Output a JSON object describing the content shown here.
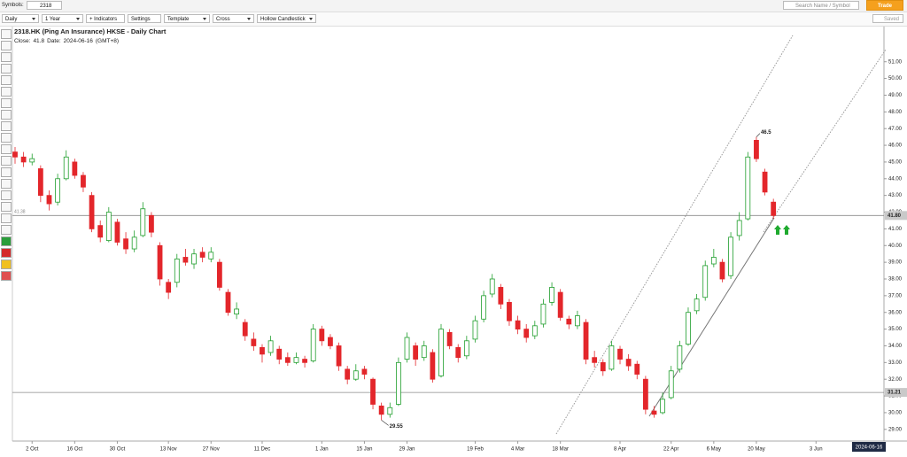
{
  "toolbar": {
    "symbols_label": "Symbols:",
    "symbol": "2318",
    "search_placeholder": "Search Name / Symbol",
    "trade": "Trade",
    "saved": "Saved",
    "menus": [
      "Daily",
      "1 Year",
      "+ Indicators",
      "Settings",
      "Template",
      "Cross",
      "Hollow Candlestick"
    ]
  },
  "chart_data": {
    "type": "candlestick",
    "title": "2318.HK (Ping An Insurance) HKSE - Daily Chart",
    "close_label": "Close:",
    "close": 41.8,
    "date_label": "Date:",
    "date": "2024-06-16",
    "timezone": "(GMT+8)",
    "up_color": "#1f9e2c",
    "down_color": "#e3262b",
    "categories": [
      null,
      null,
      "2 Oct",
      null,
      null,
      null,
      null,
      "16 Oct",
      null,
      null,
      null,
      null,
      "30 Oct",
      null,
      null,
      null,
      null,
      null,
      "13 Nov",
      null,
      null,
      null,
      null,
      "27 Nov",
      null,
      null,
      null,
      null,
      null,
      "11 Dec",
      null,
      null,
      null,
      null,
      null,
      null,
      "1 Jan",
      null,
      null,
      null,
      null,
      "15 Jan",
      null,
      null,
      null,
      null,
      "29 Jan",
      null,
      null,
      null,
      null,
      null,
      null,
      null,
      "19 Feb",
      null,
      null,
      null,
      null,
      "4 Mar",
      null,
      null,
      null,
      null,
      "18 Mar",
      null,
      null,
      null,
      null,
      null,
      null,
      "8 Apr",
      null,
      null,
      null,
      null,
      null,
      "22 Apr",
      null,
      null,
      null,
      null,
      "6 May",
      null,
      null,
      null,
      null,
      "20 May",
      null,
      null,
      null,
      null,
      null,
      null,
      "3 Jun",
      null
    ],
    "ohlc": [
      [
        45.6,
        45.9,
        44.9,
        45.3
      ],
      [
        45.3,
        45.6,
        44.7,
        45.0
      ],
      [
        45.0,
        45.5,
        44.8,
        45.2
      ],
      [
        44.6,
        44.8,
        42.6,
        43.0
      ],
      [
        43.0,
        43.3,
        42.1,
        42.5
      ],
      [
        42.6,
        44.3,
        42.4,
        44.0
      ],
      [
        44.0,
        45.7,
        43.9,
        45.3
      ],
      [
        45.0,
        45.2,
        44.0,
        44.2
      ],
      [
        44.2,
        44.4,
        43.2,
        43.5
      ],
      [
        43.0,
        43.2,
        40.8,
        41.0
      ],
      [
        41.2,
        41.5,
        40.2,
        40.5
      ],
      [
        40.3,
        42.3,
        40.2,
        42.0
      ],
      [
        41.4,
        41.6,
        40.0,
        40.2
      ],
      [
        40.4,
        40.8,
        39.5,
        39.8
      ],
      [
        39.8,
        40.9,
        39.6,
        40.5
      ],
      [
        40.6,
        42.6,
        40.5,
        42.2
      ],
      [
        41.8,
        42.0,
        40.5,
        40.8
      ],
      [
        40.0,
        40.2,
        37.6,
        38.0
      ],
      [
        37.8,
        38.0,
        36.8,
        37.2
      ],
      [
        37.8,
        39.5,
        37.5,
        39.2
      ],
      [
        39.3,
        39.8,
        38.8,
        39.0
      ],
      [
        38.9,
        39.8,
        38.6,
        39.5
      ],
      [
        39.6,
        39.9,
        39.0,
        39.3
      ],
      [
        39.2,
        39.9,
        39.0,
        39.6
      ],
      [
        39.0,
        39.2,
        37.3,
        37.5
      ],
      [
        37.2,
        37.4,
        35.8,
        36.0
      ],
      [
        35.9,
        36.6,
        35.6,
        36.2
      ],
      [
        35.4,
        35.6,
        34.3,
        34.6
      ],
      [
        34.4,
        34.8,
        33.7,
        34.0
      ],
      [
        33.9,
        34.1,
        33.0,
        33.5
      ],
      [
        33.6,
        34.6,
        33.4,
        34.3
      ],
      [
        33.8,
        34.0,
        32.9,
        33.2
      ],
      [
        33.3,
        33.6,
        32.8,
        33.0
      ],
      [
        33.0,
        33.6,
        32.9,
        33.3
      ],
      [
        33.2,
        33.4,
        32.7,
        33.0
      ],
      [
        33.1,
        35.3,
        33.0,
        35.0
      ],
      [
        35.0,
        35.2,
        34.0,
        34.3
      ],
      [
        34.5,
        34.7,
        33.8,
        34.0
      ],
      [
        34.0,
        34.2,
        32.5,
        32.8
      ],
      [
        32.6,
        32.8,
        31.7,
        32.0
      ],
      [
        32.0,
        32.9,
        31.9,
        32.5
      ],
      [
        32.6,
        32.8,
        32.0,
        32.3
      ],
      [
        32.0,
        32.1,
        30.2,
        30.5
      ],
      [
        30.4,
        30.6,
        29.55,
        29.9
      ],
      [
        29.9,
        30.6,
        29.7,
        30.3
      ],
      [
        30.5,
        33.3,
        30.4,
        33.0
      ],
      [
        33.2,
        34.8,
        33.0,
        34.5
      ],
      [
        34.0,
        34.2,
        32.8,
        33.2
      ],
      [
        33.3,
        34.3,
        33.1,
        34.0
      ],
      [
        33.6,
        33.8,
        31.8,
        32.0
      ],
      [
        32.2,
        35.3,
        32.1,
        35.0
      ],
      [
        34.8,
        35.0,
        33.8,
        34.0
      ],
      [
        33.9,
        34.1,
        33.0,
        33.3
      ],
      [
        33.4,
        34.6,
        33.2,
        34.3
      ],
      [
        34.4,
        35.8,
        34.2,
        35.5
      ],
      [
        35.6,
        37.3,
        35.4,
        37.0
      ],
      [
        37.1,
        38.3,
        36.9,
        38.0
      ],
      [
        37.5,
        37.7,
        36.2,
        36.5
      ],
      [
        36.6,
        36.8,
        35.2,
        35.5
      ],
      [
        35.5,
        35.8,
        34.7,
        35.0
      ],
      [
        35.0,
        35.3,
        34.2,
        34.5
      ],
      [
        34.6,
        35.5,
        34.4,
        35.2
      ],
      [
        35.3,
        36.8,
        35.1,
        36.5
      ],
      [
        36.6,
        37.8,
        36.4,
        37.5
      ],
      [
        37.2,
        37.4,
        35.5,
        35.7
      ],
      [
        35.6,
        35.8,
        35.0,
        35.3
      ],
      [
        35.2,
        36.1,
        35.0,
        35.8
      ],
      [
        35.4,
        35.6,
        32.9,
        33.2
      ],
      [
        33.3,
        33.7,
        32.7,
        33.0
      ],
      [
        33.0,
        33.2,
        32.2,
        32.5
      ],
      [
        32.6,
        34.3,
        32.5,
        34.0
      ],
      [
        33.8,
        34.0,
        32.9,
        33.2
      ],
      [
        33.2,
        33.5,
        32.5,
        32.8
      ],
      [
        32.9,
        33.1,
        32.0,
        32.3
      ],
      [
        32.0,
        32.2,
        29.9,
        30.2
      ],
      [
        30.1,
        30.4,
        29.7,
        29.9
      ],
      [
        30.0,
        31.2,
        29.9,
        30.8
      ],
      [
        30.9,
        32.8,
        30.8,
        32.5
      ],
      [
        32.6,
        34.3,
        32.4,
        34.0
      ],
      [
        34.1,
        36.3,
        34.0,
        36.0
      ],
      [
        36.1,
        37.1,
        35.9,
        36.8
      ],
      [
        36.9,
        39.1,
        36.7,
        38.8
      ],
      [
        38.9,
        39.8,
        38.7,
        39.3
      ],
      [
        39.0,
        39.2,
        37.8,
        38.0
      ],
      [
        38.2,
        40.8,
        38.0,
        40.5
      ],
      [
        40.6,
        42.0,
        40.3,
        41.5
      ],
      [
        41.6,
        45.6,
        41.5,
        45.3
      ],
      [
        46.3,
        46.5,
        45.0,
        45.2
      ],
      [
        44.4,
        44.6,
        43.0,
        43.2
      ],
      [
        42.6,
        42.8,
        41.6,
        41.8
      ],
      null,
      null,
      null,
      null,
      null,
      null
    ],
    "ylim": [
      28.3,
      53.0
    ],
    "yticks": [
      {
        "value": 29,
        "label": "29.00"
      },
      {
        "value": 30,
        "label": "30.00"
      },
      {
        "value": 31,
        "label": "31.00"
      },
      {
        "value": 32,
        "label": "32.00"
      },
      {
        "value": 33,
        "label": "33.00"
      },
      {
        "value": 34,
        "label": "34.00"
      },
      {
        "value": 35,
        "label": "35.00"
      },
      {
        "value": 36,
        "label": "36.00"
      },
      {
        "value": 37,
        "label": "37.00"
      },
      {
        "value": 38,
        "label": "38.00"
      },
      {
        "value": 39,
        "label": "39.00"
      },
      {
        "value": 40,
        "label": "40.00"
      },
      {
        "value": 41,
        "label": "41.00"
      },
      {
        "value": 42,
        "label": "42.00"
      },
      {
        "value": 43,
        "label": "43.00"
      },
      {
        "value": 44,
        "label": "44.00"
      },
      {
        "value": 45,
        "label": "45.00"
      },
      {
        "value": 46,
        "label": "46.00"
      },
      {
        "value": 47,
        "label": "47.00"
      },
      {
        "value": 48,
        "label": "48.00"
      },
      {
        "value": 49,
        "label": "49.00"
      },
      {
        "value": 50,
        "label": "50.00"
      },
      {
        "value": 51,
        "label": "51.00"
      }
    ],
    "price_lines": [
      {
        "value": 41.8,
        "label": "41.80"
      },
      {
        "value": 31.21,
        "label": "31.21"
      }
    ],
    "cursor_price": 41.38,
    "high_label": 46.5,
    "low_label": 29.55
  }
}
